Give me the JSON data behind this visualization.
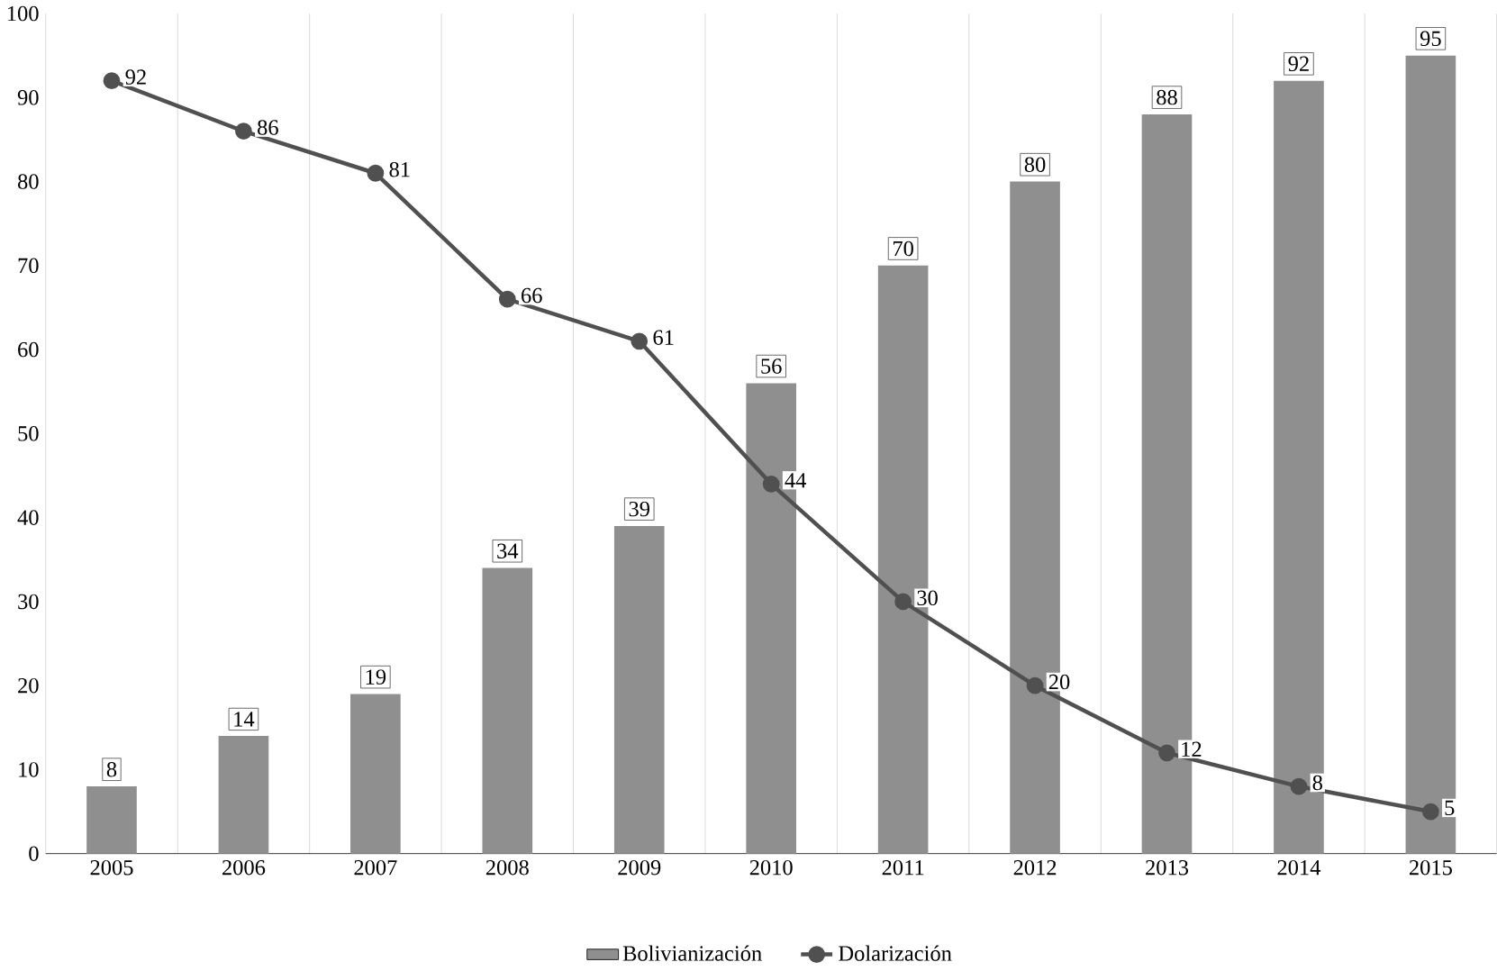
{
  "chart_data": {
    "type": "bar",
    "categories": [
      "2005",
      "2006",
      "2007",
      "2008",
      "2009",
      "2010",
      "2011",
      "2012",
      "2013",
      "2014",
      "2015"
    ],
    "series": [
      {
        "name": "Bolivianización",
        "color": "#8f8f8f",
        "values": [
          8,
          14,
          19,
          34,
          39,
          56,
          70,
          80,
          88,
          92,
          95
        ]
      },
      {
        "name": "Dolarización",
        "type": "line",
        "color": "#505050",
        "marker": "circle",
        "values": [
          92,
          86,
          81,
          66,
          61,
          44,
          30,
          20,
          12,
          8,
          5
        ]
      }
    ],
    "ylim": [
      0,
      100
    ],
    "yticks": [
      0,
      10,
      20,
      30,
      40,
      50,
      60,
      70,
      80,
      90,
      100
    ],
    "grid": "x",
    "legend": "bottom",
    "data_labels": true
  }
}
